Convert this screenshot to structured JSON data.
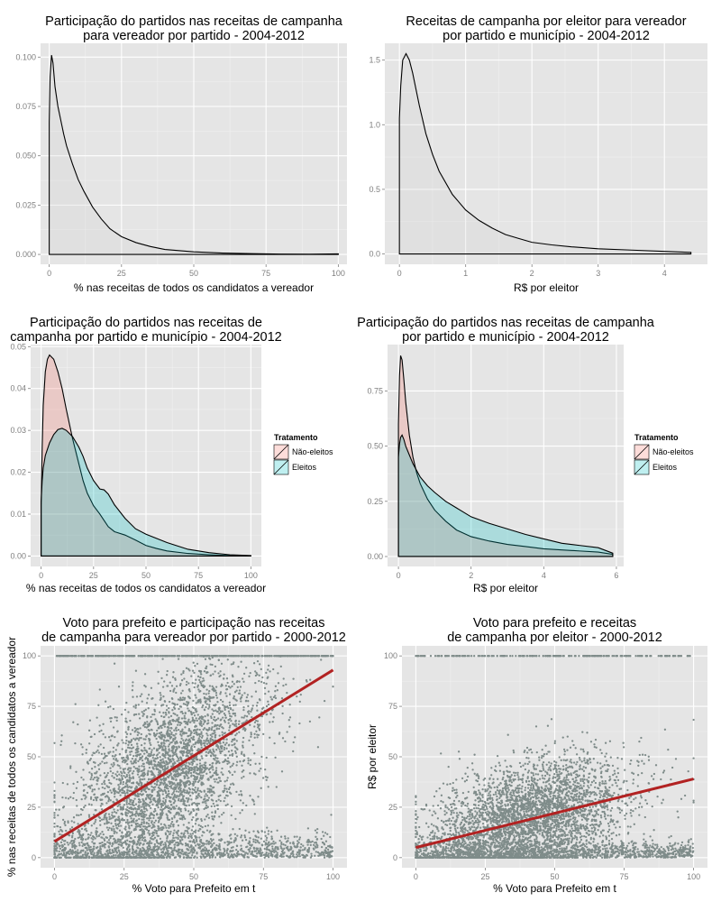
{
  "chart_data": [
    {
      "id": "p1",
      "type": "area",
      "title": [
        "Participação do partidos nas receitas de campanha",
        "para vereador por partido - 2004-2012"
      ],
      "xlabel": "% nas receitas de todos os candidatos a vereador",
      "ylabel": "",
      "xlim": [
        -3,
        103
      ],
      "ylim": [
        -0.005,
        0.107
      ],
      "xticks": [
        0,
        25,
        50,
        75,
        100
      ],
      "xtick_labels": [
        "0",
        "25",
        "50",
        "75",
        "100"
      ],
      "yticks": [
        0.0,
        0.025,
        0.05,
        0.075,
        0.1
      ],
      "ytick_labels": [
        "0.000",
        "0.025",
        "0.050",
        "0.075",
        "0.100"
      ],
      "series": [
        {
          "fill": "#d3d3d3",
          "x": [
            0,
            0.3,
            0.8,
            1.3,
            2,
            3,
            4,
            5,
            6,
            8,
            10,
            12,
            15,
            18,
            21,
            25,
            30,
            35,
            40,
            50,
            60,
            70,
            80,
            90,
            100
          ],
          "y": [
            0.067,
            0.09,
            0.101,
            0.097,
            0.085,
            0.075,
            0.068,
            0.061,
            0.055,
            0.046,
            0.038,
            0.032,
            0.024,
            0.018,
            0.013,
            0.009,
            0.006,
            0.004,
            0.0025,
            0.0013,
            0.0007,
            0.0004,
            0.0002,
            0.0001,
            0.0003
          ]
        }
      ]
    },
    {
      "id": "p2",
      "type": "area",
      "title": [
        "Receitas de campanha por eleitor para vereador",
        "por partido e município - 2004-2012"
      ],
      "xlabel": "R$ por eleitor",
      "ylabel": "",
      "xlim": [
        -0.22,
        4.65
      ],
      "ylim": [
        -0.08,
        1.63
      ],
      "xticks": [
        0,
        1,
        2,
        3,
        4
      ],
      "xtick_labels": [
        "0",
        "1",
        "2",
        "3",
        "4"
      ],
      "yticks": [
        0.0,
        0.5,
        1.0,
        1.5
      ],
      "ytick_labels": [
        "0.0",
        "0.5",
        "1.0",
        "1.5"
      ],
      "series": [
        {
          "fill": "#d3d3d3",
          "x": [
            0,
            0.02,
            0.05,
            0.1,
            0.15,
            0.2,
            0.3,
            0.4,
            0.5,
            0.6,
            0.8,
            1.0,
            1.2,
            1.4,
            1.6,
            1.8,
            2.0,
            2.3,
            2.6,
            3.0,
            3.5,
            4.0,
            4.4
          ],
          "y": [
            1.05,
            1.3,
            1.5,
            1.55,
            1.5,
            1.4,
            1.15,
            0.93,
            0.77,
            0.64,
            0.46,
            0.34,
            0.26,
            0.2,
            0.15,
            0.12,
            0.09,
            0.07,
            0.055,
            0.04,
            0.03,
            0.02,
            0.012
          ]
        }
      ]
    },
    {
      "id": "p3",
      "type": "area",
      "title": [
        "Participação do partidos nas receitas de",
        "campanha por partido e município - 2004-2012"
      ],
      "xlabel": "% nas receitas de todos os candidatos a vereador",
      "ylabel": "",
      "xlim": [
        -5,
        105
      ],
      "ylim": [
        -0.0025,
        0.0505
      ],
      "xticks": [
        0,
        25,
        50,
        75,
        100
      ],
      "xtick_labels": [
        "0",
        "25",
        "50",
        "75",
        "100"
      ],
      "yticks": [
        0.0,
        0.01,
        0.02,
        0.03,
        0.04,
        0.05
      ],
      "ytick_labels": [
        "0.00",
        "0.01",
        "0.02",
        "0.03",
        "0.04",
        "0.05"
      ],
      "legend": {
        "title": "Tratamento",
        "position": "right",
        "labels": [
          "Não-eleitos",
          "Eleitos"
        ]
      },
      "series": [
        {
          "name": "Não-eleitos",
          "fill": "#f8766d",
          "x": [
            0,
            0.5,
            1,
            2,
            3,
            4,
            6,
            8,
            10,
            12,
            15,
            18,
            20,
            22,
            25,
            28,
            30,
            32,
            35,
            40,
            45,
            50,
            55,
            60,
            70,
            80,
            90,
            100
          ],
          "y": [
            0.012,
            0.026,
            0.036,
            0.044,
            0.047,
            0.048,
            0.047,
            0.044,
            0.04,
            0.035,
            0.028,
            0.022,
            0.018,
            0.015,
            0.012,
            0.01,
            0.0085,
            0.007,
            0.0058,
            0.005,
            0.0038,
            0.0025,
            0.0018,
            0.0012,
            0.0006,
            0.0003,
            0.0001,
            0.0
          ]
        },
        {
          "name": "Eleitos",
          "fill": "#00bfc4",
          "x": [
            0,
            0.5,
            1,
            2,
            4,
            6,
            8,
            10,
            12,
            15,
            18,
            20,
            22,
            25,
            28,
            30,
            32,
            35,
            40,
            45,
            50,
            55,
            60,
            70,
            80,
            90,
            100
          ],
          "y": [
            0.013,
            0.018,
            0.021,
            0.024,
            0.027,
            0.029,
            0.0302,
            0.0305,
            0.03,
            0.0285,
            0.026,
            0.0238,
            0.021,
            0.018,
            0.016,
            0.0158,
            0.0148,
            0.0122,
            0.009,
            0.0065,
            0.0052,
            0.0042,
            0.0032,
            0.0016,
            0.0008,
            0.0003,
            0.0001
          ]
        }
      ]
    },
    {
      "id": "p4",
      "type": "area",
      "title": [
        "Participação do partidos nas receitas de campanha",
        "por partido e município - 2004-2012"
      ],
      "xlabel": "R$ por eleitor",
      "ylabel": "",
      "xlim": [
        -0.3,
        6.2
      ],
      "ylim": [
        -0.045,
        0.96
      ],
      "xticks": [
        0,
        2,
        4,
        6
      ],
      "xtick_labels": [
        "0",
        "2",
        "4",
        "6"
      ],
      "yticks": [
        0.0,
        0.25,
        0.5,
        0.75
      ],
      "ytick_labels": [
        "0.00",
        "0.25",
        "0.50",
        "0.75"
      ],
      "legend": {
        "title": "Tratamento",
        "position": "right",
        "labels": [
          "Não-eleitos",
          "Eleitos"
        ]
      },
      "series": [
        {
          "name": "Não-eleitos",
          "fill": "#f8766d",
          "x": [
            0,
            0.03,
            0.06,
            0.1,
            0.15,
            0.2,
            0.3,
            0.4,
            0.5,
            0.6,
            0.8,
            1.0,
            1.3,
            1.6,
            2.0,
            2.5,
            3.0,
            3.5,
            4.0,
            4.5,
            5.0,
            5.5,
            5.9
          ],
          "y": [
            0.6,
            0.82,
            0.91,
            0.89,
            0.8,
            0.7,
            0.55,
            0.45,
            0.38,
            0.33,
            0.26,
            0.21,
            0.16,
            0.12,
            0.09,
            0.07,
            0.055,
            0.045,
            0.035,
            0.03,
            0.025,
            0.02,
            0.01
          ]
        },
        {
          "name": "Eleitos",
          "fill": "#00bfc4",
          "x": [
            0,
            0.03,
            0.06,
            0.1,
            0.15,
            0.2,
            0.3,
            0.4,
            0.5,
            0.6,
            0.8,
            1.0,
            1.3,
            1.6,
            2.0,
            2.5,
            3.0,
            3.5,
            4.0,
            4.5,
            5.0,
            5.5,
            5.9
          ],
          "y": [
            0.45,
            0.51,
            0.54,
            0.55,
            0.53,
            0.5,
            0.46,
            0.42,
            0.39,
            0.36,
            0.32,
            0.29,
            0.25,
            0.22,
            0.18,
            0.15,
            0.125,
            0.1,
            0.08,
            0.06,
            0.05,
            0.04,
            0.015
          ]
        }
      ]
    },
    {
      "id": "p5",
      "type": "scatter",
      "title": [
        "Voto para prefeito e participação nas receitas",
        "de campanha para vereador por partido - 2000-2012"
      ],
      "xlabel": "% Voto para Prefeito em t",
      "ylabel": "% nas receitas de todos os candidatos a vereador",
      "xlim": [
        -5,
        105
      ],
      "ylim": [
        -5,
        105
      ],
      "xticks": [
        0,
        25,
        50,
        75,
        100
      ],
      "xtick_labels": [
        "0",
        "25",
        "50",
        "75",
        "100"
      ],
      "yticks": [
        0,
        25,
        50,
        75,
        100
      ],
      "ytick_labels": [
        "0",
        "25",
        "50",
        "75",
        "100"
      ],
      "point_color": "#7f8c8a",
      "fit_line": {
        "color": "#b22222",
        "x": [
          0,
          100
        ],
        "y": [
          8,
          93
        ]
      }
    },
    {
      "id": "p6",
      "type": "scatter",
      "title": [
        "Voto para prefeito e receitas",
        "de campanha por eleitor - 2000-2012"
      ],
      "xlabel": "% Voto para Prefeito em t",
      "ylabel": "R$ por eleitor",
      "xlim": [
        -5,
        105
      ],
      "ylim": [
        -5,
        105
      ],
      "xticks": [
        0,
        25,
        50,
        75,
        100
      ],
      "xtick_labels": [
        "0",
        "25",
        "50",
        "75",
        "100"
      ],
      "yticks": [
        0,
        25,
        50,
        75,
        100
      ],
      "ytick_labels": [
        "0",
        "25",
        "50",
        "75",
        "100"
      ],
      "point_color": "#7f8c8a",
      "fit_line": {
        "color": "#b22222",
        "x": [
          0,
          100
        ],
        "y": [
          5,
          39
        ]
      }
    }
  ]
}
